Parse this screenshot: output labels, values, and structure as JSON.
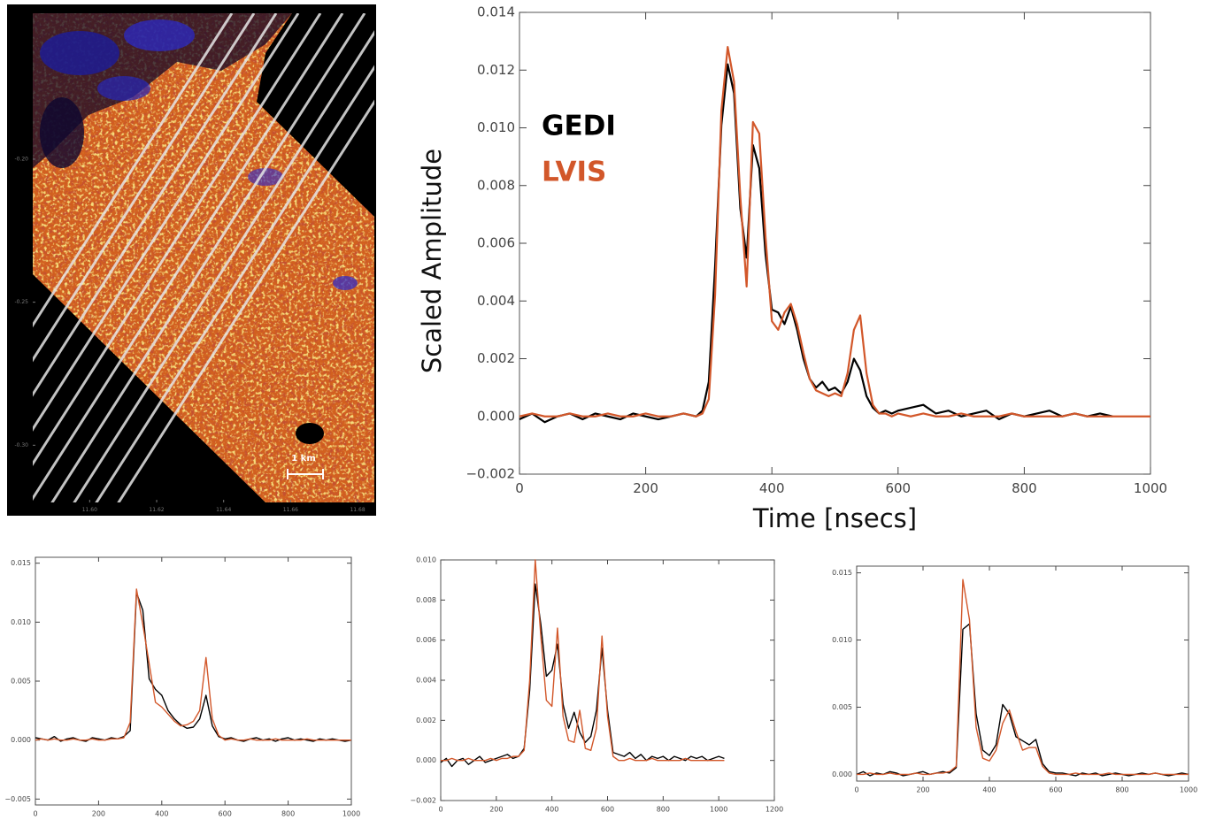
{
  "chart_data": [
    {
      "type": "map",
      "annotations": [
        "1 km"
      ],
      "xlim": [
        11.583,
        11.685
      ],
      "ylim": [
        -0.32,
        -0.149
      ],
      "xticks": [
        {
          "value": 11.6,
          "label": "11.60"
        },
        {
          "value": 11.62,
          "label": "11.62"
        },
        {
          "value": 11.64,
          "label": "11.64"
        },
        {
          "value": 11.66,
          "label": "11.66"
        },
        {
          "value": 11.68,
          "label": "11.68"
        }
      ],
      "yticks": [
        {
          "value": -0.2,
          "label": "-0.20"
        },
        {
          "value": -0.25,
          "label": "-0.25"
        },
        {
          "value": -0.3,
          "label": "-0.30"
        }
      ]
    },
    {
      "type": "line",
      "x_label": "Time [nsecs]",
      "y_label": "Scaled Amplitude",
      "legend": "upper left",
      "xlim": [
        0,
        1000
      ],
      "ylim": [
        -0.002,
        0.014
      ],
      "xticks": [
        0,
        200,
        400,
        600,
        800,
        1000
      ],
      "yticks": [
        {
          "value": -0.002,
          "label": "−0.002"
        },
        {
          "value": 0,
          "label": "0.000"
        },
        0.002,
        0.004,
        0.006,
        0.008,
        {
          "value": 0.01,
          "label": "0.010"
        },
        0.012,
        0.014
      ],
      "x": [
        0,
        20,
        40,
        60,
        80,
        100,
        120,
        140,
        160,
        180,
        200,
        220,
        240,
        260,
        280,
        290,
        300,
        310,
        320,
        330,
        340,
        350,
        360,
        370,
        380,
        390,
        400,
        410,
        420,
        430,
        440,
        450,
        460,
        470,
        480,
        490,
        500,
        510,
        520,
        530,
        540,
        550,
        560,
        570,
        580,
        590,
        600,
        620,
        640,
        660,
        680,
        700,
        720,
        740,
        760,
        780,
        800,
        820,
        840,
        860,
        880,
        900,
        920,
        940,
        960,
        980,
        1000
      ],
      "series": [
        {
          "name": "GEDI",
          "color": "#000000",
          "values": [
            -0.0001,
            0.0001,
            -0.0002,
            0,
            0.0001,
            -0.0001,
            0.0001,
            0,
            -0.0001,
            0.0001,
            0,
            -0.0001,
            0,
            0.0001,
            0,
            0.0002,
            0.0012,
            0.0052,
            0.0101,
            0.0122,
            0.0112,
            0.0072,
            0.0055,
            0.0094,
            0.0086,
            0.0056,
            0.0037,
            0.0036,
            0.0032,
            0.0038,
            0.003,
            0.002,
            0.0013,
            0.001,
            0.0012,
            0.0009,
            0.001,
            0.0008,
            0.0012,
            0.002,
            0.0016,
            0.0007,
            0.0003,
            0.0001,
            0.0002,
            0.0001,
            0.0002,
            0.0003,
            0.0004,
            0.0001,
            0.0002,
            0,
            0.0001,
            0.0002,
            -0.0001,
            0.0001,
            0,
            0.0001,
            0.0002,
            0,
            0.0001,
            0,
            0.0001,
            0,
            null,
            null,
            null
          ]
        },
        {
          "name": "LVIS",
          "color": "#d2572a",
          "values": [
            0,
            0.0001,
            0,
            0,
            0.0001,
            0,
            0,
            0.0001,
            0,
            0,
            0.0001,
            0,
            0,
            0.0001,
            0,
            0.0001,
            0.0006,
            0.0042,
            0.0106,
            0.0128,
            0.0116,
            0.0076,
            0.0045,
            0.0102,
            0.0098,
            0.0062,
            0.0033,
            0.003,
            0.0036,
            0.0039,
            0.0032,
            0.0022,
            0.0013,
            0.0009,
            0.0008,
            0.0007,
            0.0008,
            0.0007,
            0.0015,
            0.003,
            0.0035,
            0.0015,
            0.0004,
            0.0001,
            0.0001,
            0,
            0.0001,
            0,
            0.0001,
            0,
            0,
            0.0001,
            0,
            0,
            0,
            0.0001,
            0,
            0,
            0,
            0,
            0.0001,
            0,
            0,
            0,
            0,
            0,
            0
          ]
        }
      ]
    },
    {
      "type": "line",
      "xlim": [
        0,
        1000
      ],
      "ylim": [
        -0.0055,
        0.0155
      ],
      "xticks": [
        0,
        200,
        400,
        600,
        800,
        1000
      ],
      "yticks": [
        {
          "value": -0.005,
          "label": "−0.005"
        },
        {
          "value": 0,
          "label": "0.000"
        },
        0.005,
        {
          "value": 0.01,
          "label": "0.010"
        },
        0.015
      ],
      "x": [
        0,
        20,
        40,
        60,
        80,
        100,
        120,
        140,
        160,
        180,
        200,
        220,
        240,
        260,
        280,
        300,
        320,
        340,
        360,
        380,
        400,
        420,
        440,
        460,
        480,
        500,
        520,
        540,
        560,
        580,
        600,
        620,
        640,
        660,
        680,
        700,
        720,
        740,
        760,
        780,
        800,
        820,
        840,
        860,
        880,
        900,
        920,
        940,
        960,
        980,
        1000
      ],
      "series": [
        {
          "color": "#000000",
          "values": [
            0.0002,
            0.0001,
            0,
            0.0003,
            -0.0001,
            0.0001,
            0.0002,
            0,
            -0.0001,
            0.0002,
            0.0001,
            0,
            0.0002,
            0.0001,
            0.0003,
            0.0008,
            0.0125,
            0.011,
            0.0052,
            0.0043,
            0.0038,
            0.0025,
            0.0018,
            0.0013,
            0.001,
            0.0011,
            0.0018,
            0.0038,
            0.0012,
            0.0003,
            0.0001,
            0.0002,
            0,
            -0.0001,
            0.0001,
            0.0002,
            0,
            0.0001,
            -0.0001,
            0.0001,
            0.0002,
            0,
            0.0001,
            0,
            -0.0001,
            0.0001,
            0,
            0.0001,
            0,
            -0.0001,
            0
          ]
        },
        {
          "color": "#d2572a",
          "values": [
            0,
            0.0001,
            0,
            0.0001,
            0,
            0,
            0.0001,
            0,
            0,
            0.0001,
            0,
            0,
            0.0001,
            0.0001,
            0.0002,
            0.0015,
            0.0128,
            0.0098,
            0.0065,
            0.0032,
            0.0028,
            0.0022,
            0.0016,
            0.0012,
            0.0013,
            0.0016,
            0.0025,
            0.007,
            0.0018,
            0.0004,
            0,
            0.0001,
            0,
            0,
            0.0001,
            0,
            0,
            0,
            0.0001,
            0,
            0,
            0,
            0,
            0.0001,
            0,
            0,
            0,
            0,
            0,
            0,
            0
          ]
        }
      ]
    },
    {
      "type": "line",
      "xlim": [
        0,
        1200
      ],
      "ylim": [
        -0.002,
        0.01
      ],
      "xticks": [
        0,
        200,
        400,
        600,
        800,
        1000,
        1200
      ],
      "yticks": [
        {
          "value": -0.002,
          "label": "−0.002"
        },
        {
          "value": 0,
          "label": "0.000"
        },
        0.002,
        0.004,
        0.006,
        0.008,
        {
          "value": 0.01,
          "label": "0.010"
        }
      ],
      "x": [
        0,
        20,
        40,
        60,
        80,
        100,
        120,
        140,
        160,
        180,
        200,
        220,
        240,
        260,
        280,
        300,
        320,
        340,
        360,
        380,
        400,
        420,
        440,
        460,
        480,
        500,
        520,
        540,
        560,
        580,
        600,
        620,
        640,
        660,
        680,
        700,
        720,
        740,
        760,
        780,
        800,
        820,
        840,
        860,
        880,
        900,
        920,
        940,
        960,
        980,
        1000,
        1020
      ],
      "series": [
        {
          "color": "#000000",
          "values": [
            -0.0001,
            0.0001,
            -0.0003,
            0,
            0.0001,
            -0.0002,
            0,
            0.0002,
            -0.0001,
            0,
            0.0001,
            0.0002,
            0.0003,
            0.0001,
            0.0002,
            0.0006,
            0.0035,
            0.0088,
            0.0068,
            0.0042,
            0.0045,
            0.0058,
            0.0028,
            0.0016,
            0.0024,
            0.0014,
            0.0009,
            0.0012,
            0.0025,
            0.0056,
            0.0025,
            0.0004,
            0.0003,
            0.0002,
            0.0004,
            0.0001,
            0.0003,
            0,
            0.0002,
            0.0001,
            0.0002,
            0,
            0.0002,
            0.0001,
            0,
            0.0002,
            0.0001,
            0.0002,
            0,
            0.0001,
            0.0002,
            0.0001
          ]
        },
        {
          "color": "#d2572a",
          "values": [
            0,
            0,
            0.0001,
            0,
            0,
            0.0001,
            0,
            0,
            0,
            0.0001,
            0,
            0.0001,
            0.0001,
            0.0002,
            0.0002,
            0.0005,
            0.004,
            0.01,
            0.0062,
            0.003,
            0.0027,
            0.0066,
            0.0022,
            0.001,
            0.0009,
            0.0025,
            0.0006,
            0.0005,
            0.0016,
            0.0062,
            0.0022,
            0.0002,
            0,
            0,
            0.0001,
            0,
            0,
            0,
            0.0001,
            0,
            0,
            0,
            0,
            0,
            0.0001,
            0,
            0,
            0,
            0,
            0,
            0,
            0
          ]
        }
      ]
    },
    {
      "type": "line",
      "xlim": [
        0,
        1000
      ],
      "ylim": [
        -0.0005,
        0.0155
      ],
      "xticks": [
        0,
        200,
        400,
        600,
        800,
        1000
      ],
      "yticks": [
        {
          "value": 0,
          "label": "0.000"
        },
        0.005,
        {
          "value": 0.01,
          "label": "0.010"
        },
        0.015
      ],
      "x": [
        0,
        20,
        40,
        60,
        80,
        100,
        120,
        140,
        160,
        180,
        200,
        220,
        240,
        260,
        280,
        300,
        320,
        340,
        360,
        380,
        400,
        420,
        440,
        460,
        480,
        500,
        520,
        540,
        560,
        580,
        600,
        620,
        640,
        660,
        680,
        700,
        720,
        740,
        760,
        780,
        800,
        820,
        840,
        860,
        880,
        900,
        920,
        940,
        960,
        980,
        1000
      ],
      "series": [
        {
          "color": "#000000",
          "values": [
            0,
            0.0002,
            -0.0001,
            0.0001,
            0,
            0.0002,
            0.0001,
            -0.0001,
            0,
            0.0001,
            0.0002,
            0,
            0.0001,
            0.0002,
            0.0001,
            0.0005,
            0.0108,
            0.0112,
            0.0045,
            0.0018,
            0.0014,
            0.0022,
            0.0052,
            0.0045,
            0.0028,
            0.0025,
            0.0022,
            0.0026,
            0.0008,
            0.0002,
            0.0001,
            0.0001,
            0,
            -0.0001,
            0.0001,
            0,
            0.0001,
            -0.0001,
            0,
            0.0001,
            0,
            -0.0001,
            0,
            0.0001,
            0,
            0.0001,
            0,
            -0.0001,
            0,
            0.0001,
            0
          ]
        },
        {
          "color": "#d2572a",
          "values": [
            0,
            0,
            0.0001,
            0,
            0,
            0.0001,
            0,
            0,
            0,
            0.0001,
            0,
            0,
            0.0001,
            0.0001,
            0.0002,
            0.0006,
            0.0145,
            0.0115,
            0.0035,
            0.0012,
            0.001,
            0.0018,
            0.0038,
            0.0048,
            0.0032,
            0.0018,
            0.002,
            0.002,
            0.0006,
            0.0001,
            0,
            0,
            0,
            0.0001,
            0,
            0,
            0,
            0,
            0.0001,
            0,
            0,
            0,
            0,
            0,
            0,
            0.0001,
            0,
            0,
            0,
            0,
            0
          ]
        }
      ]
    }
  ]
}
